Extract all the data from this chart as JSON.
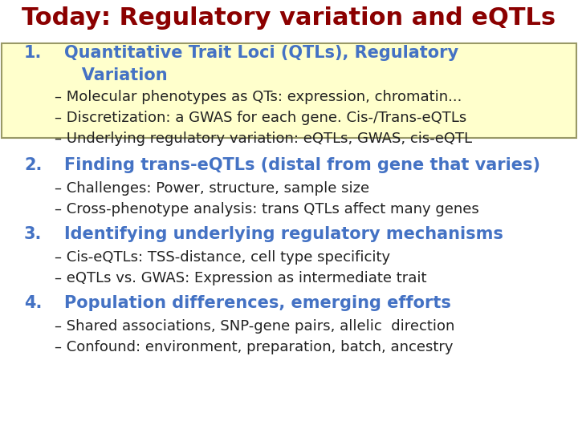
{
  "title": "Today: Regulatory variation and eQTLs",
  "title_color": "#8B0000",
  "background_color": "#FFFFFF",
  "box_bg_color": "#FFFFCC",
  "box_border_color": "#999966",
  "items": [
    {
      "number": "1.",
      "heading_line1": "Quantitative Trait Loci (QTLs), Regulatory",
      "heading_line2": "   Variation",
      "heading_color": "#4472C4",
      "in_box": true,
      "bullets_in_box": [
        "– Molecular phenotypes as QTs: expression, chromatin...",
        "– Discretization: a GWAS for each gene. Cis-/Trans-eQTLs"
      ],
      "bullets_out_box": [
        "– Underlying regulatory variation: eQTLs, GWAS, cis-eQTL"
      ]
    },
    {
      "number": "2.",
      "heading_line1": "Finding trans-eQTLs (distal from gene that varies)",
      "heading_line2": null,
      "heading_color": "#4472C4",
      "in_box": false,
      "bullets_in_box": [],
      "bullets_out_box": [
        "– Challenges: Power, structure, sample size",
        "– Cross-phenotype analysis: trans QTLs affect many genes"
      ]
    },
    {
      "number": "3.",
      "heading_line1": "Identifying underlying regulatory mechanisms",
      "heading_line2": null,
      "heading_color": "#4472C4",
      "in_box": false,
      "bullets_in_box": [],
      "bullets_out_box": [
        "– Cis-eQTLs: TSS-distance, cell type specificity",
        "– eQTLs vs. GWAS: Expression as intermediate trait"
      ]
    },
    {
      "number": "4.",
      "heading_line1": "Population differences, emerging efforts",
      "heading_line2": null,
      "heading_color": "#4472C4",
      "in_box": false,
      "bullets_in_box": [],
      "bullets_out_box": [
        "– Shared associations, SNP-gene pairs, allelic  direction",
        "– Confound: environment, preparation, batch, ancestry"
      ]
    }
  ],
  "bullet_color": "#222222",
  "title_fontsize": 22,
  "heading_fontsize": 15,
  "bullet_fontsize": 13,
  "number_fontsize": 15
}
